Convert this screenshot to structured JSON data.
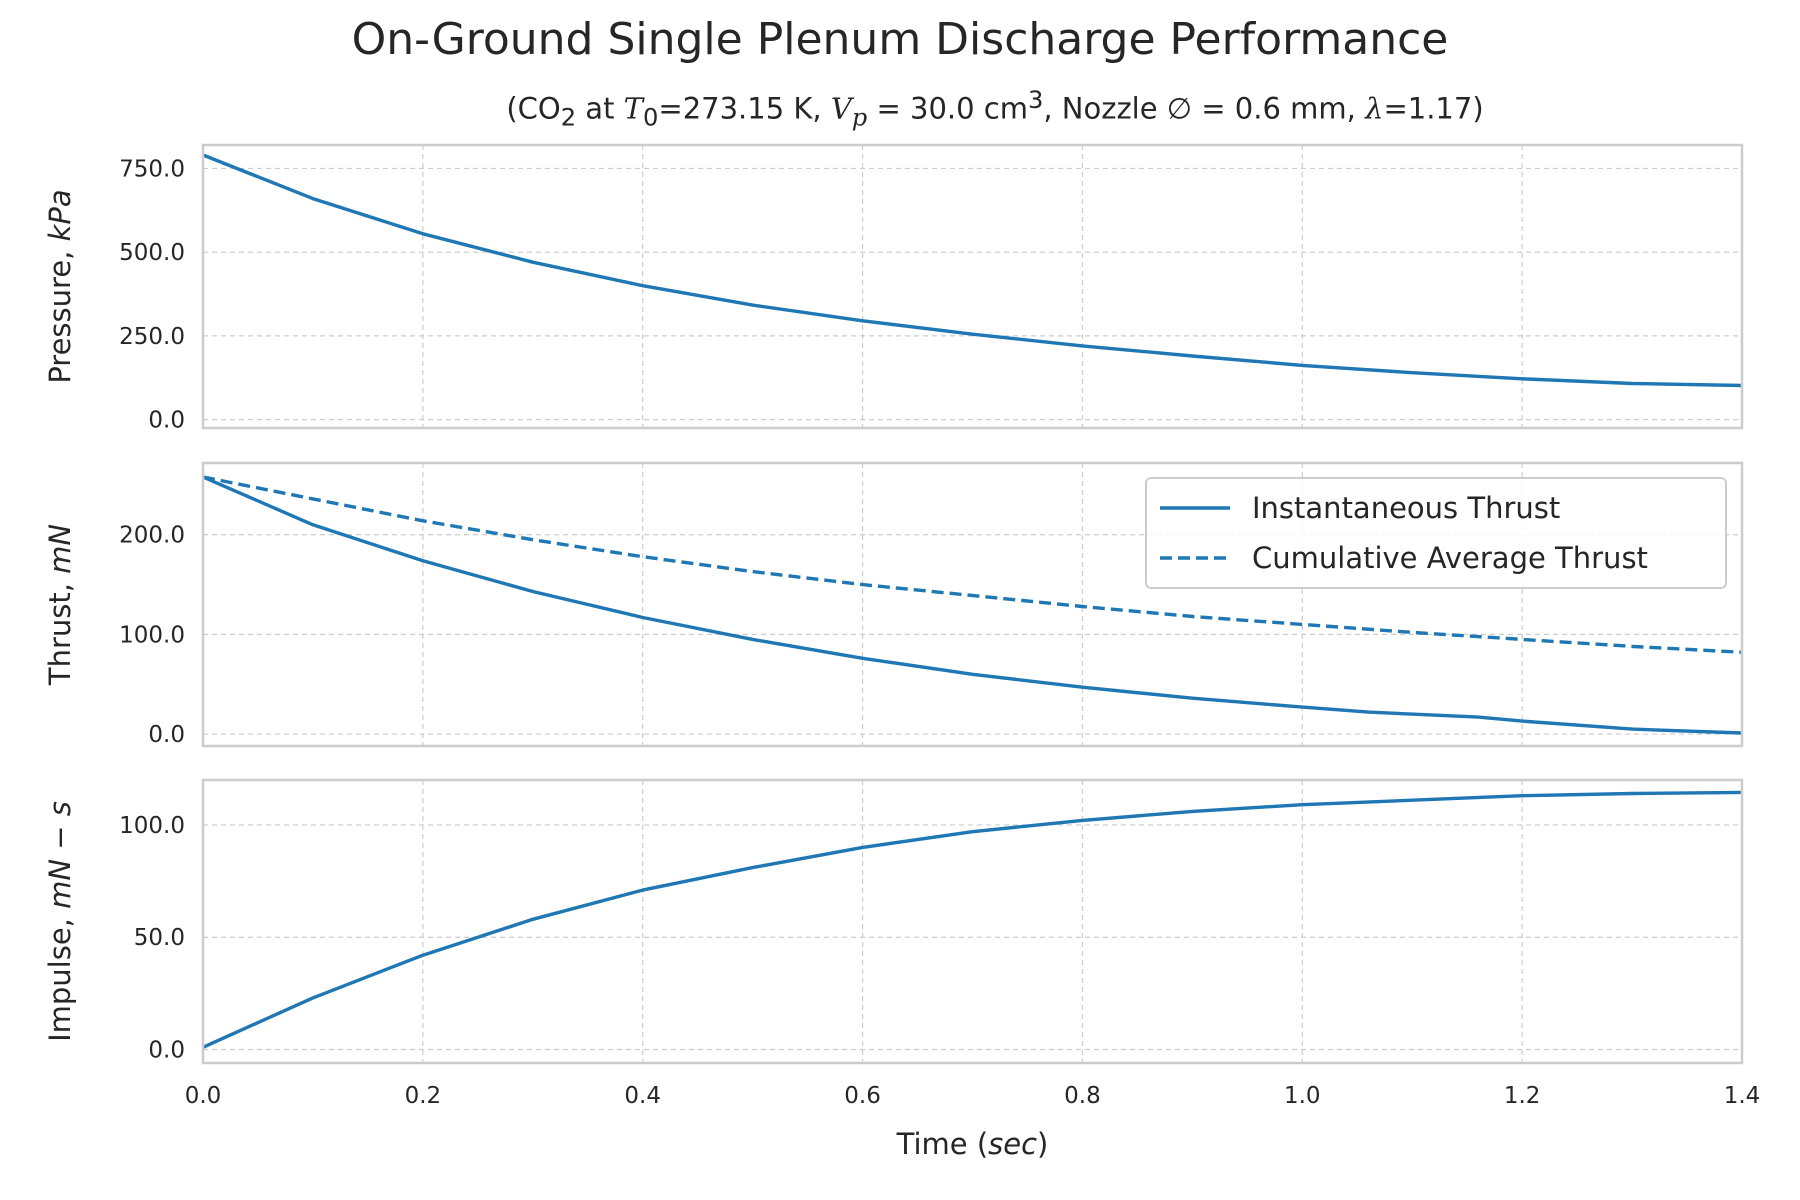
{
  "figure": {
    "title": "On-Ground Single Plenum Discharge Performance",
    "subtitle": {
      "prefix": "(CO",
      "sub1": "2",
      "at": " at ",
      "T": "T",
      "T_sub": "0",
      "T_val": "=273.15 K, ",
      "V": "V",
      "V_sub": "p",
      "V_val": " = 30.0 cm",
      "V_sup": "3",
      "nozzle": ", Nozzle ∅ = 0.6 mm, ",
      "lambda": "λ",
      "lambda_val": "=1.17)"
    },
    "xlabel": "Time (sec)",
    "colors": {
      "line": "#1f77b4",
      "grid": "#cccccc",
      "spine": "#cccccc",
      "text": "#262626"
    }
  },
  "chart_data": [
    {
      "type": "line",
      "ylabel": "Pressure, kPa",
      "xlim": [
        0,
        1.4
      ],
      "ylim": [
        -25,
        820
      ],
      "yticks": [
        0,
        250,
        500,
        750
      ],
      "ytick_labels": [
        "0.0",
        "250.0",
        "500.0",
        "750.0"
      ],
      "grid": true,
      "series": [
        {
          "style": "solid",
          "x": [
            0,
            0.1,
            0.2,
            0.3,
            0.4,
            0.5,
            0.6,
            0.7,
            0.8,
            0.9,
            1.0,
            1.1,
            1.2,
            1.3,
            1.4
          ],
          "y": [
            790,
            660,
            555,
            470,
            400,
            342,
            295,
            255,
            220,
            190,
            162,
            140,
            122,
            108,
            102
          ]
        }
      ]
    },
    {
      "type": "line",
      "ylabel": "Thrust, mN",
      "xlim": [
        0,
        1.4
      ],
      "ylim": [
        -12,
        272
      ],
      "yticks": [
        0,
        100,
        200
      ],
      "ytick_labels": [
        "0.0",
        "100.0",
        "200.0"
      ],
      "grid": true,
      "legend": "top-right",
      "series": [
        {
          "name": "Instantaneous Thrust",
          "style": "solid",
          "x": [
            0,
            0.1,
            0.2,
            0.3,
            0.4,
            0.5,
            0.6,
            0.7,
            0.8,
            0.9,
            1.0,
            1.06,
            1.16,
            1.2,
            1.3,
            1.4
          ],
          "y": [
            258,
            210,
            174,
            143,
            117,
            95,
            76,
            60,
            47,
            36,
            27,
            22,
            17,
            13,
            5,
            1
          ]
        },
        {
          "name": "Cumulative Average Thrust",
          "style": "dashed",
          "x": [
            0,
            0.1,
            0.2,
            0.3,
            0.4,
            0.5,
            0.6,
            0.7,
            0.8,
            0.9,
            1.0,
            1.1,
            1.2,
            1.3,
            1.4
          ],
          "y": [
            258,
            236,
            214,
            195,
            178,
            163,
            150,
            139,
            128,
            118,
            110,
            102,
            95,
            88,
            82
          ]
        }
      ]
    },
    {
      "type": "line",
      "ylabel": "Impulse, mN − s",
      "xlim": [
        0,
        1.4
      ],
      "xticks": [
        0,
        0.2,
        0.4,
        0.6,
        0.8,
        1.0,
        1.2,
        1.4
      ],
      "xtick_labels": [
        "0.0",
        "0.2",
        "0.4",
        "0.6",
        "0.8",
        "1.0",
        "1.2",
        "1.4"
      ],
      "ylim": [
        -6,
        120
      ],
      "yticks": [
        0,
        50,
        100
      ],
      "ytick_labels": [
        "0.0",
        "50.0",
        "100.0"
      ],
      "grid": true,
      "series": [
        {
          "style": "solid",
          "x": [
            0,
            0.1,
            0.2,
            0.3,
            0.4,
            0.5,
            0.6,
            0.7,
            0.8,
            0.9,
            1.0,
            1.1,
            1.2,
            1.3,
            1.4
          ],
          "y": [
            1,
            23,
            42,
            58,
            71,
            81,
            90,
            97,
            102,
            106,
            109,
            111,
            113,
            114,
            114.5
          ]
        }
      ]
    }
  ]
}
